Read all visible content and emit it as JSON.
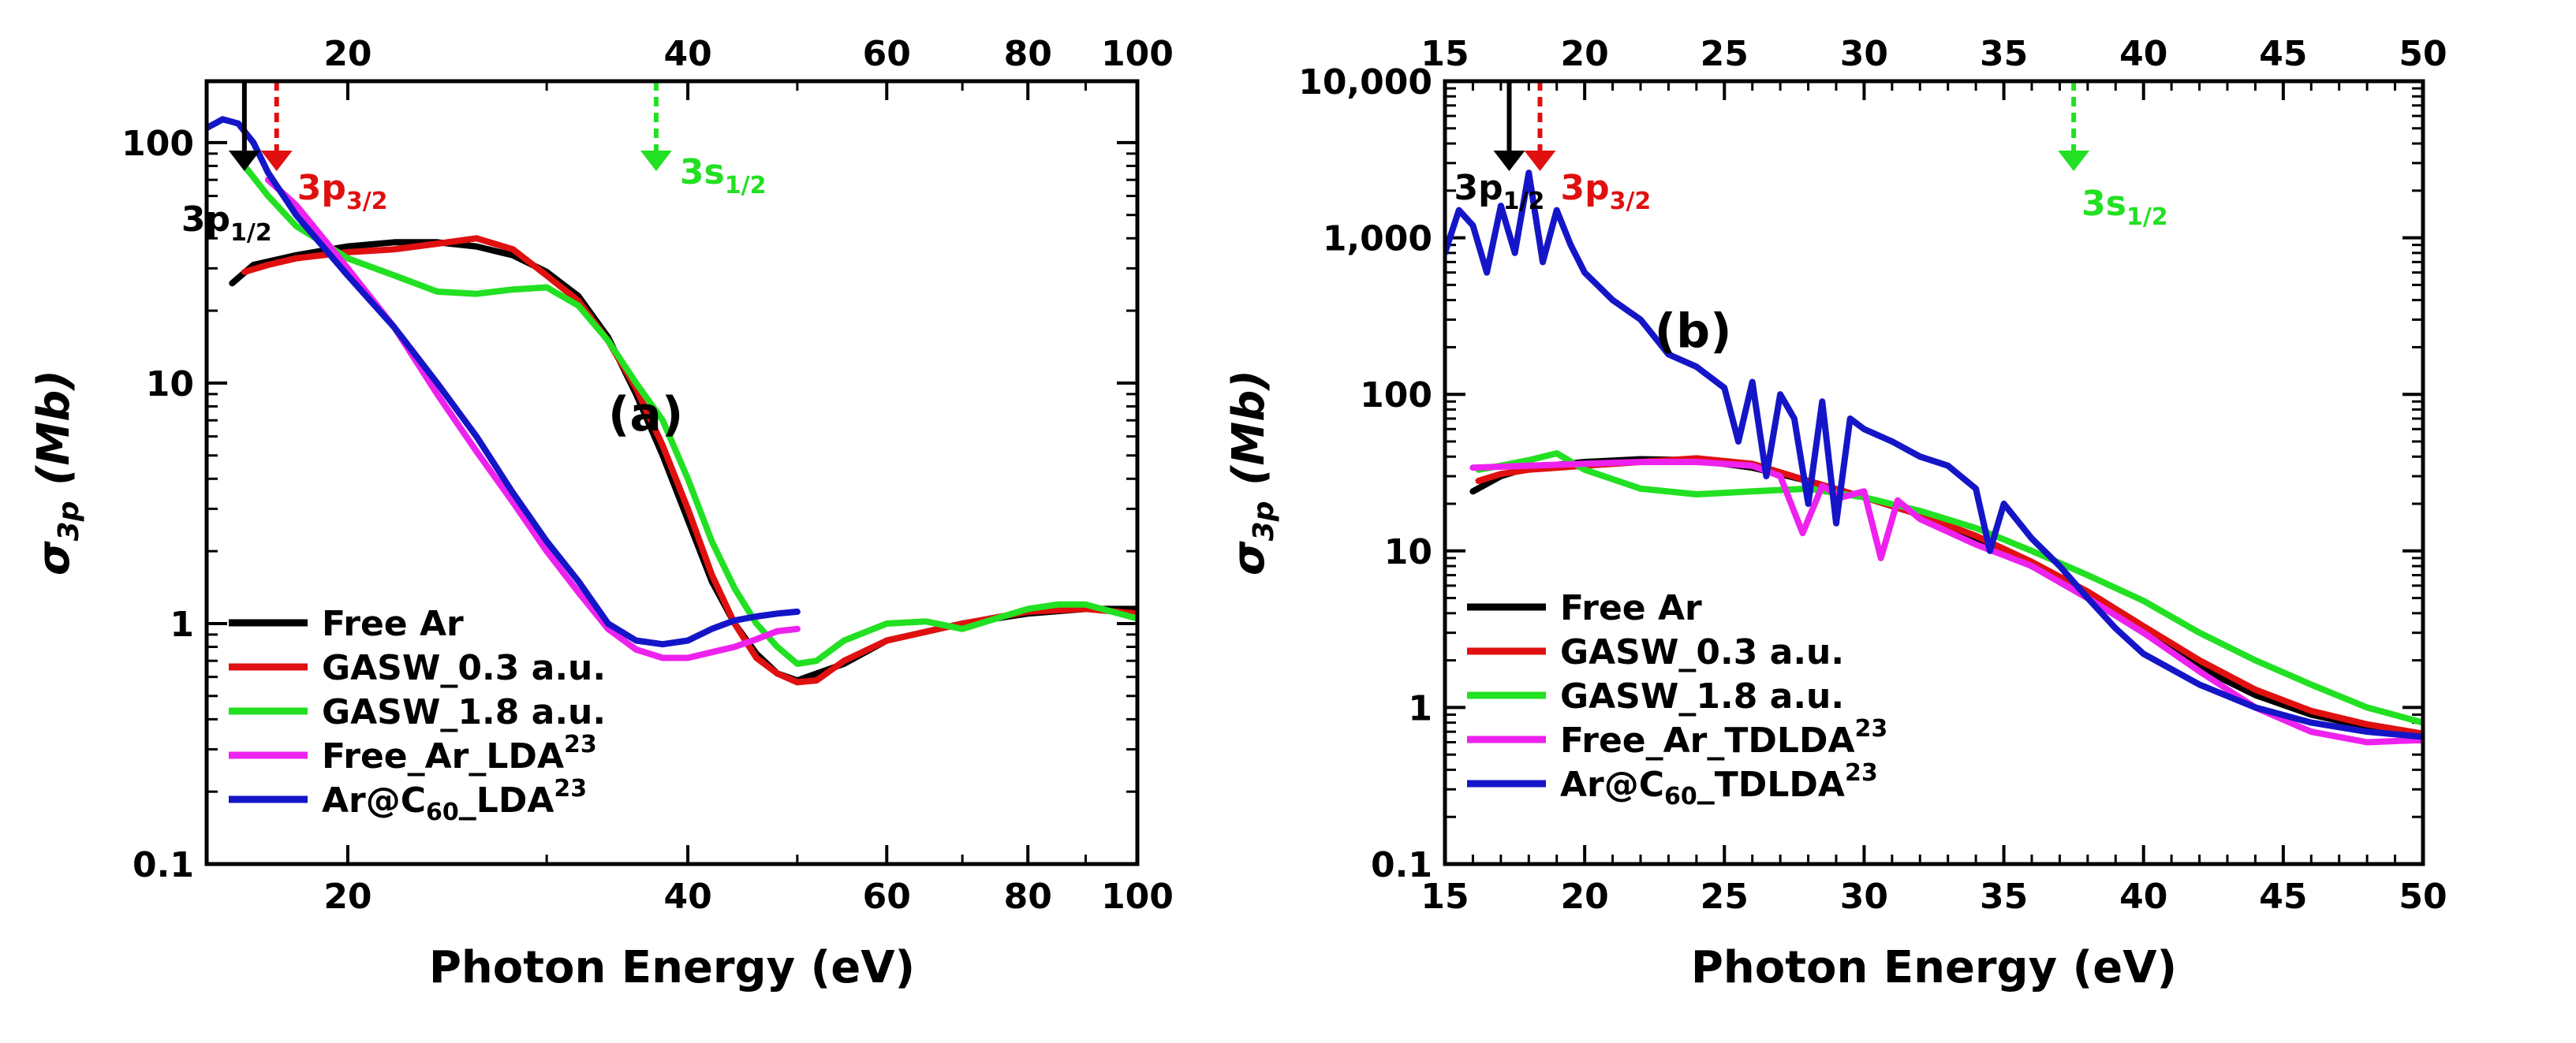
{
  "colors": {
    "black": "#000000",
    "red": "#e01010",
    "green": "#22e022",
    "magenta": "#ee22ee",
    "blue": "#1515c8"
  },
  "chart_data": [
    {
      "type": "line",
      "panel_label": "(a)",
      "xlabel": "Photon Energy (eV)",
      "ylabel": "σ3p (Mb)",
      "ylabel_main": "σ",
      "ylabel_sub": "3p",
      "ylabel_unit": " (Mb)",
      "x_scale": "log",
      "y_scale": "log",
      "xlim": [
        15,
        100
      ],
      "ylim": [
        0.1,
        180
      ],
      "x_ticks": [
        20,
        40,
        60,
        80,
        100
      ],
      "x_tick_labels": [
        "20",
        "40",
        "60",
        "80",
        "100"
      ],
      "y_ticks": [
        0.1,
        1,
        10,
        100
      ],
      "y_tick_labels": [
        "0.1",
        "1",
        "10",
        "100"
      ],
      "annotations": [
        {
          "main": "3p",
          "sub": "1/2",
          "x": 16.2,
          "color": "#000000"
        },
        {
          "main": "3p",
          "sub": "3/2",
          "x": 17.3,
          "color": "#e01010"
        },
        {
          "main": "3s",
          "sub": "1/2",
          "x": 37.5,
          "color": "#22e022"
        }
      ],
      "legend": [
        {
          "key": "free",
          "label": "Free Ar",
          "sup": "",
          "color": "#000000"
        },
        {
          "key": "g03",
          "label": "GASW_0.3 a.u.",
          "sup": "",
          "color": "#e01010"
        },
        {
          "key": "g18",
          "label": "GASW_1.8 a.u.",
          "sup": "",
          "color": "#22e022"
        },
        {
          "key": "flda",
          "label": "Free_Ar_LDA",
          "sup": "23",
          "color": "#ee22ee"
        },
        {
          "key": "clda",
          "label": "Ar@C60_LDA",
          "sup": "23",
          "color": "#1515c8"
        }
      ],
      "series": [
        {
          "name": "Free Ar",
          "color": "#000000",
          "x": [
            15.8,
            16.5,
            18,
            20,
            22,
            24,
            26,
            28,
            30,
            32,
            34,
            36,
            38,
            40,
            42,
            44,
            46,
            48,
            50,
            55,
            60,
            70,
            80,
            90,
            100
          ],
          "y": [
            26,
            31,
            34,
            37,
            38.5,
            38.5,
            37,
            34,
            29,
            23,
            15.5,
            9,
            5,
            2.7,
            1.5,
            1.0,
            0.75,
            0.62,
            0.58,
            0.68,
            0.85,
            1.0,
            1.1,
            1.15,
            1.15
          ]
        },
        {
          "name": "GASW_0.3 a.u.",
          "color": "#e01010",
          "x": [
            16.2,
            17,
            18,
            20,
            22,
            24,
            26,
            28,
            30,
            32,
            34,
            36,
            38,
            40,
            42,
            44,
            46,
            48,
            50,
            52,
            55,
            60,
            70,
            80,
            90,
            100
          ],
          "y": [
            29,
            31,
            33,
            35,
            36,
            38,
            40,
            36,
            28,
            22,
            15,
            9.5,
            5.5,
            3.0,
            1.6,
            1.0,
            0.72,
            0.62,
            0.57,
            0.58,
            0.7,
            0.85,
            1.0,
            1.12,
            1.15,
            1.1
          ]
        },
        {
          "name": "GASW_1.8 a.u.",
          "color": "#22e022",
          "x": [
            16.2,
            17,
            18,
            20,
            22,
            24,
            26,
            28,
            30,
            32,
            34,
            36,
            38,
            40,
            42,
            44,
            46,
            48,
            50,
            52,
            55,
            60,
            65,
            70,
            75,
            80,
            85,
            90,
            100
          ],
          "y": [
            80,
            60,
            45,
            33,
            28,
            24,
            23.5,
            24.5,
            25,
            21,
            15,
            10,
            7,
            4,
            2.2,
            1.4,
            1.0,
            0.8,
            0.68,
            0.7,
            0.85,
            1.0,
            1.02,
            0.95,
            1.05,
            1.15,
            1.2,
            1.2,
            1.05
          ]
        },
        {
          "name": "Free_Ar_LDA",
          "color": "#ee22ee",
          "x": [
            17,
            18,
            20,
            22,
            24,
            26,
            28,
            30,
            32,
            34,
            36,
            38,
            40,
            42,
            44,
            46,
            48,
            50
          ],
          "y": [
            70,
            55,
            30,
            17,
            9,
            5.2,
            3.2,
            2.0,
            1.35,
            0.95,
            0.78,
            0.72,
            0.72,
            0.76,
            0.8,
            0.86,
            0.93,
            0.95
          ]
        },
        {
          "name": "Ar@C60_LDA",
          "color": "#1515c8",
          "x": [
            15,
            15.5,
            16,
            16.5,
            17,
            18,
            20,
            22,
            24,
            26,
            28,
            30,
            32,
            34,
            36,
            38,
            40,
            42,
            44,
            46,
            48,
            50
          ],
          "y": [
            115,
            125,
            120,
            100,
            75,
            50,
            28,
            17,
            10,
            6.0,
            3.5,
            2.2,
            1.5,
            1.0,
            0.85,
            0.82,
            0.85,
            0.95,
            1.03,
            1.07,
            1.1,
            1.12
          ]
        }
      ]
    },
    {
      "type": "line",
      "panel_label": "(b)",
      "xlabel": "Photon Energy (eV)",
      "ylabel": "σ3p (Mb)",
      "ylabel_main": "σ",
      "ylabel_sub": "3p",
      "ylabel_unit": " (Mb)",
      "x_scale": "linear",
      "y_scale": "log",
      "xlim": [
        15,
        50
      ],
      "ylim": [
        0.1,
        10000
      ],
      "x_ticks": [
        15,
        20,
        25,
        30,
        35,
        40,
        45,
        50
      ],
      "x_tick_labels": [
        "15",
        "20",
        "25",
        "30",
        "35",
        "40",
        "45",
        "50"
      ],
      "y_ticks": [
        0.1,
        1,
        10,
        100,
        1000,
        10000
      ],
      "y_tick_labels": [
        "0.1",
        "1",
        "10",
        "100",
        "1,000",
        "10,000"
      ],
      "annotations": [
        {
          "main": "3p",
          "sub": "1/2",
          "x": 17.3,
          "color": "#000000"
        },
        {
          "main": "3p",
          "sub": "3/2",
          "x": 18.4,
          "color": "#e01010"
        },
        {
          "main": "3s",
          "sub": "1/2",
          "x": 37.5,
          "color": "#22e022"
        }
      ],
      "legend": [
        {
          "key": "free",
          "label": "Free Ar",
          "sup": "",
          "color": "#000000"
        },
        {
          "key": "g03",
          "label": "GASW_0.3 a.u.",
          "sup": "",
          "color": "#e01010"
        },
        {
          "key": "g18",
          "label": "GASW_1.8 a.u.",
          "sup": "",
          "color": "#22e022"
        },
        {
          "key": "ftd",
          "label": "Free_Ar_TDLDA",
          "sup": "23",
          "color": "#ee22ee"
        },
        {
          "key": "ctd",
          "label": "Ar@C60_TDLDA",
          "sup": "23",
          "color": "#1515c8"
        }
      ],
      "series": [
        {
          "name": "Free Ar",
          "color": "#000000",
          "x": [
            16,
            17,
            18,
            20,
            22,
            24,
            26,
            28,
            30,
            32,
            34,
            36,
            38,
            40,
            42,
            44,
            46,
            48,
            50
          ],
          "y": [
            24,
            30,
            34,
            37,
            38.5,
            38,
            34,
            28,
            22,
            17,
            12,
            8,
            5,
            3,
            1.8,
            1.2,
            0.9,
            0.75,
            0.65
          ]
        },
        {
          "name": "GASW_0.3 a.u.",
          "color": "#e01010",
          "x": [
            16.2,
            17,
            18,
            20,
            22,
            24,
            26,
            28,
            30,
            32,
            34,
            36,
            38,
            40,
            42,
            44,
            46,
            48,
            50
          ],
          "y": [
            28,
            31,
            33,
            35,
            37,
            39,
            36,
            28,
            22,
            17,
            12.5,
            8.5,
            5.5,
            3.3,
            2.0,
            1.3,
            0.95,
            0.78,
            0.68
          ]
        },
        {
          "name": "GASW_1.8 a.u.",
          "color": "#22e022",
          "x": [
            16.2,
            17,
            18,
            19,
            20,
            22,
            24,
            26,
            28,
            30,
            32,
            34,
            36,
            38,
            40,
            42,
            44,
            46,
            48,
            50
          ],
          "y": [
            33,
            35,
            38,
            42,
            33,
            25,
            23,
            24,
            25,
            22,
            18,
            14,
            10,
            7,
            4.8,
            3.0,
            2.0,
            1.4,
            1.0,
            0.8
          ]
        },
        {
          "name": "Free_Ar_TDLDA",
          "color": "#ee22ee",
          "x": [
            16,
            18,
            20,
            22,
            24,
            26,
            27,
            27.8,
            28.5,
            29.2,
            30,
            30.6,
            31.2,
            32,
            34,
            36,
            38,
            40,
            42,
            44,
            46,
            48,
            50
          ],
          "y": [
            34,
            35,
            36,
            37,
            37,
            35,
            30,
            13,
            26,
            22,
            24,
            9,
            21,
            16,
            11,
            8,
            5,
            3,
            1.7,
            1.0,
            0.7,
            0.6,
            0.62
          ]
        },
        {
          "name": "Ar@C60_TDLDA",
          "color": "#1515c8",
          "x": [
            15,
            15.5,
            16,
            16.5,
            17,
            17.5,
            18,
            18.5,
            19,
            19.5,
            20,
            21,
            22,
            23,
            24,
            25,
            25.5,
            26,
            26.5,
            27,
            27.5,
            28,
            28.5,
            29,
            29.5,
            30,
            31,
            32,
            33,
            34,
            34.5,
            35,
            36,
            37,
            38,
            39,
            40,
            42,
            44,
            46,
            48,
            50
          ],
          "y": [
            800,
            1500,
            1200,
            600,
            1600,
            800,
            2600,
            700,
            1500,
            900,
            600,
            400,
            300,
            180,
            150,
            110,
            50,
            120,
            30,
            100,
            70,
            20,
            90,
            15,
            70,
            60,
            50,
            40,
            35,
            25,
            10,
            20,
            12,
            8,
            5,
            3.2,
            2.2,
            1.4,
            1.0,
            0.8,
            0.7,
            0.65
          ]
        }
      ]
    }
  ]
}
